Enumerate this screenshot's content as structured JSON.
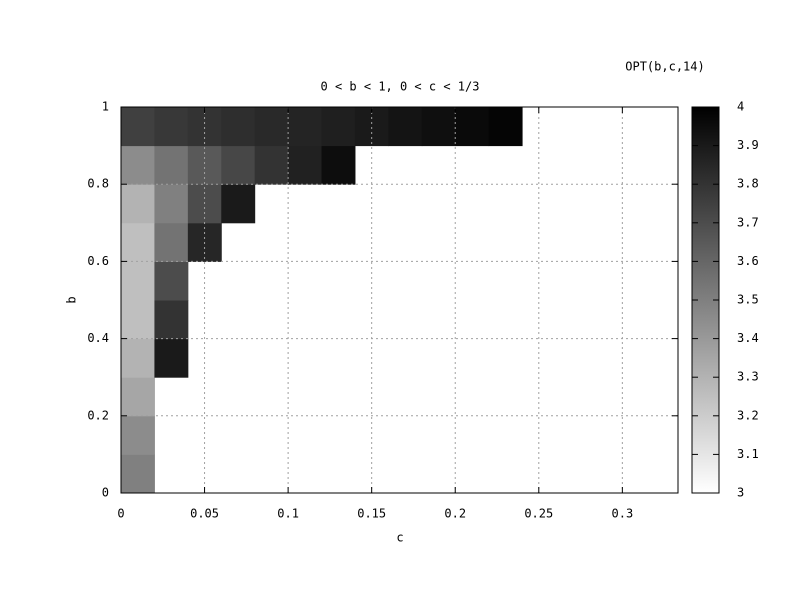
{
  "chart_data": {
    "type": "heatmap",
    "title": "0 < b < 1, 0 < c < 1/3",
    "colorbar_title": "OPT(b,c,14)",
    "xlabel": "c",
    "ylabel": "b",
    "x": [
      0.01,
      0.03,
      0.05,
      0.07,
      0.09,
      0.11,
      0.13,
      0.15,
      0.17,
      0.19,
      0.21,
      0.23,
      0.25,
      0.27,
      0.29,
      0.31,
      0.33
    ],
    "y": [
      0.05,
      0.15,
      0.25,
      0.35,
      0.45,
      0.55,
      0.65,
      0.75,
      0.85,
      0.95
    ],
    "z": [
      [
        3.5,
        null,
        null,
        null,
        null,
        null,
        null,
        null,
        null,
        null,
        null,
        null,
        null,
        null,
        null,
        null,
        null
      ],
      [
        3.45,
        null,
        null,
        null,
        null,
        null,
        null,
        null,
        null,
        null,
        null,
        null,
        null,
        null,
        null,
        null,
        null
      ],
      [
        3.35,
        null,
        null,
        null,
        null,
        null,
        null,
        null,
        null,
        null,
        null,
        null,
        null,
        null,
        null,
        null,
        null
      ],
      [
        3.3,
        3.9,
        null,
        null,
        null,
        null,
        null,
        null,
        null,
        null,
        null,
        null,
        null,
        null,
        null,
        null,
        null
      ],
      [
        3.25,
        3.8,
        null,
        null,
        null,
        null,
        null,
        null,
        null,
        null,
        null,
        null,
        null,
        null,
        null,
        null,
        null
      ],
      [
        3.25,
        3.7,
        null,
        null,
        null,
        null,
        null,
        null,
        null,
        null,
        null,
        null,
        null,
        null,
        null,
        null,
        null
      ],
      [
        3.25,
        3.55,
        3.85,
        null,
        null,
        null,
        null,
        null,
        null,
        null,
        null,
        null,
        null,
        null,
        null,
        null,
        null
      ],
      [
        3.3,
        3.5,
        3.7,
        3.9,
        null,
        null,
        null,
        null,
        null,
        null,
        null,
        null,
        null,
        null,
        null,
        null,
        null
      ],
      [
        3.45,
        3.55,
        3.65,
        3.72,
        3.8,
        3.87,
        3.95,
        null,
        null,
        null,
        null,
        null,
        null,
        null,
        null,
        null,
        null
      ],
      [
        3.75,
        3.78,
        3.8,
        3.82,
        3.84,
        3.86,
        3.88,
        3.9,
        3.92,
        3.94,
        3.96,
        3.98,
        null,
        null,
        null,
        null,
        null
      ]
    ],
    "xlim": [
      0,
      0.3333
    ],
    "ylim": [
      0,
      1
    ],
    "zlim": [
      3,
      4
    ],
    "xticks": [
      0,
      0.05,
      0.1,
      0.15,
      0.2,
      0.25,
      0.3
    ],
    "yticks": [
      0,
      0.2,
      0.4,
      0.6,
      0.8,
      1
    ],
    "zticks": [
      3,
      3.1,
      3.2,
      3.3,
      3.4,
      3.5,
      3.6,
      3.7,
      3.8,
      3.9,
      4
    ],
    "colormap": [
      "#ffffff",
      "#000000"
    ],
    "grid": true
  }
}
